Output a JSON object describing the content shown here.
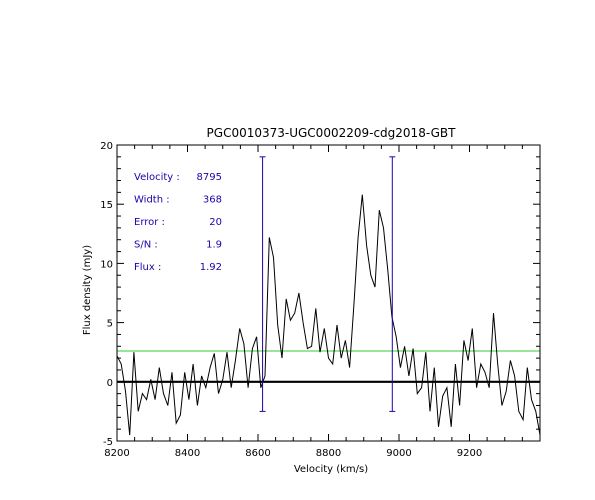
{
  "chart_data": {
    "type": "line",
    "title": "PGC0010373-UGC0002209-cdg2018-GBT",
    "xlabel": "Velocity (km/s)",
    "ylabel": "Flux density (mJy)",
    "xlim": [
      8200,
      9400
    ],
    "ylim": [
      -5,
      20
    ],
    "x_ticks": [
      8200,
      8400,
      8600,
      8800,
      9000,
      9200
    ],
    "y_ticks": [
      -5,
      0,
      5,
      10,
      15,
      20
    ],
    "x_tick_labels": [
      "8200",
      "8400",
      "8600",
      "8800",
      "9000",
      "9200"
    ],
    "y_tick_labels": [
      "-5",
      "0",
      "5",
      "10",
      "15",
      "20"
    ],
    "grid": false,
    "series": [
      {
        "color": "#000000",
        "x": [
          8200,
          8212,
          8224,
          8236,
          8248,
          8260,
          8272,
          8284,
          8296,
          8308,
          8320,
          8332,
          8344,
          8356,
          8368,
          8380,
          8392,
          8404,
          8416,
          8428,
          8440,
          8452,
          8464,
          8476,
          8488,
          8500,
          8512,
          8524,
          8536,
          8548,
          8560,
          8572,
          8584,
          8596,
          8608,
          8620,
          8632,
          8644,
          8656,
          8668,
          8680,
          8692,
          8704,
          8716,
          8728,
          8740,
          8752,
          8764,
          8776,
          8788,
          8800,
          8812,
          8824,
          8836,
          8848,
          8860,
          8872,
          8884,
          8896,
          8908,
          8920,
          8932,
          8944,
          8956,
          8968,
          8980,
          8992,
          9004,
          9016,
          9028,
          9040,
          9052,
          9064,
          9076,
          9088,
          9100,
          9112,
          9124,
          9136,
          9148,
          9160,
          9172,
          9184,
          9196,
          9208,
          9220,
          9232,
          9244,
          9256,
          9268,
          9280,
          9292,
          9304,
          9316,
          9328,
          9340,
          9352,
          9364,
          9376,
          9388,
          9400
        ],
        "y": [
          2.2,
          1.5,
          -0.8,
          -4.5,
          2.5,
          -2.5,
          -1.0,
          -1.5,
          0.2,
          -1.5,
          1.2,
          -1.0,
          -2.0,
          0.8,
          -3.5,
          -2.8,
          0.8,
          -1.5,
          1.5,
          -2.0,
          0.5,
          -0.5,
          1.2,
          2.4,
          -1.0,
          0.2,
          2.5,
          -0.5,
          1.8,
          4.5,
          3.2,
          -0.5,
          2.8,
          3.8,
          -0.5,
          0.5,
          12.2,
          10.5,
          4.8,
          2.0,
          7.0,
          5.2,
          5.8,
          7.5,
          5.0,
          2.8,
          3.0,
          6.2,
          2.5,
          4.5,
          2.0,
          1.5,
          4.8,
          2.0,
          3.5,
          1.2,
          6.5,
          12.2,
          15.8,
          11.5,
          9.0,
          8.0,
          14.5,
          13.0,
          9.5,
          5.5,
          3.8,
          1.2,
          3.0,
          0.5,
          2.8,
          -1.0,
          -0.5,
          2.5,
          -2.5,
          1.2,
          -3.8,
          -1.2,
          -0.5,
          -3.8,
          1.5,
          -2.0,
          3.5,
          1.8,
          4.5,
          -0.5,
          1.5,
          0.8,
          -0.5,
          5.8,
          1.5,
          -2.0,
          -0.8,
          1.8,
          0.5,
          -2.5,
          -3.2,
          1.2,
          -1.5,
          -2.5,
          -4.5
        ]
      }
    ],
    "markers": [
      {
        "x": 8613,
        "y_range": [
          -2.5,
          19
        ],
        "color": "#2200aa"
      },
      {
        "x": 8981,
        "y_range": [
          -2.5,
          19
        ],
        "color": "#2200aa"
      }
    ],
    "reference_lines": [
      {
        "y": 0,
        "color": "#000000",
        "style": "bold"
      },
      {
        "y": 2.6,
        "color": "#33cc33",
        "style": "thin"
      }
    ],
    "annotations": [
      {
        "label": "Velocity :",
        "value": "8795"
      },
      {
        "label": "Width :",
        "value": "368"
      },
      {
        "label": "Error :",
        "value": "20"
      },
      {
        "label": "S/N :",
        "value": "1.9"
      },
      {
        "label": "Flux :",
        "value": "1.92"
      }
    ],
    "annotation_color": "#2200aa"
  }
}
